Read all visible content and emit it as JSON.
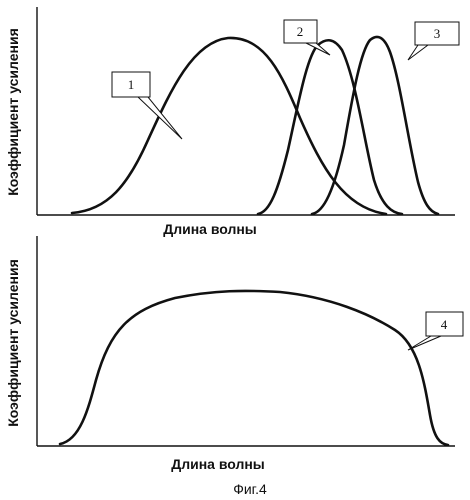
{
  "top_panel": {
    "y_axis_title": "Коэффициент усиления",
    "x_axis_title": "Длина волны",
    "callouts": {
      "label_1": "1",
      "label_2": "2",
      "label_3": "3"
    }
  },
  "bottom_panel": {
    "y_axis_title": "Коэффициент усиления",
    "x_axis_title": "Длина волны",
    "callouts": {
      "label_4": "4"
    }
  },
  "caption": "Фиг.4",
  "colors": {
    "ink": "#111111",
    "background": "#ffffff"
  }
}
